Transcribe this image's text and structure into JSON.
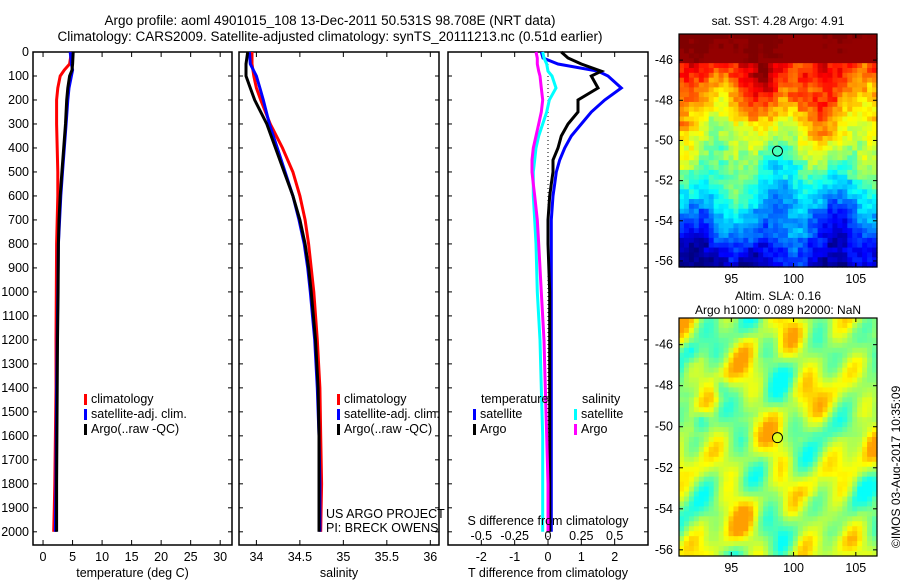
{
  "header": {
    "title_line1": "Argo profile: aoml 4901015_108 13-Dec-2011 50.531S 98.708E (NRT data)",
    "title_line2": "Climatology: CARS2009. Satellite-adjusted climatology: synTS_20111213.nc (0.51d earlier)"
  },
  "colors": {
    "climatology": "#ff0000",
    "satellite": "#0000ff",
    "argo": "#000000",
    "sal_satellite": "#00ffff",
    "sal_argo": "#ff00ff"
  },
  "chart_data": [
    {
      "type": "line",
      "name": "temperature-profile",
      "xlabel": "temperature (deg C)",
      "ylabel": "depth",
      "xlim": [
        -1.7,
        32
      ],
      "ylim": [
        2055,
        0
      ],
      "xticks": [
        "0",
        "5",
        "10",
        "15",
        "20",
        "25",
        "30"
      ],
      "yticks": [
        "0",
        "100",
        "200",
        "300",
        "400",
        "500",
        "600",
        "700",
        "800",
        "900",
        "1000",
        "1100",
        "1200",
        "1300",
        "1400",
        "1500",
        "1600",
        "1700",
        "1800",
        "1900",
        "2000"
      ],
      "legend": [
        "climatology",
        "satellite-adj. clim.",
        "Argo(..raw -QC)"
      ],
      "legend_position": "lower-middle",
      "depth": [
        0,
        50,
        75,
        100,
        150,
        200,
        300,
        400,
        500,
        600,
        700,
        800,
        1000,
        1200,
        1400,
        1600,
        1800,
        1900,
        2000
      ],
      "series": [
        {
          "name": "climatology",
          "color": "#ff0000",
          "values": [
            4.8,
            4.5,
            3.6,
            2.9,
            2.5,
            2.3,
            2.3,
            2.4,
            2.5,
            2.5,
            2.4,
            2.3,
            2.25,
            2.2,
            2.2,
            2.1,
            2.0,
            1.9,
            1.8
          ]
        },
        {
          "name": "satellite-adj. clim.",
          "color": "#0000ff",
          "values": [
            4.6,
            4.8,
            5.0,
            4.8,
            4.4,
            4.2,
            3.9,
            3.6,
            3.3,
            3.0,
            2.8,
            2.6,
            2.5,
            2.4,
            2.3,
            2.25,
            2.2,
            2.15,
            2.1
          ]
        },
        {
          "name": "Argo(..raw -QC)",
          "color": "#000000",
          "values": [
            5.1,
            5.0,
            4.9,
            4.5,
            4.2,
            4.0,
            3.8,
            3.5,
            3.2,
            2.9,
            2.7,
            2.6,
            2.55,
            2.45,
            2.4,
            2.35,
            2.3,
            2.3,
            2.3
          ]
        }
      ]
    },
    {
      "type": "line",
      "name": "salinity-profile",
      "xlabel": "salinity",
      "ylabel": "depth",
      "xlim": [
        33.8,
        36.1
      ],
      "ylim": [
        2055,
        0
      ],
      "xticks": [
        "34",
        "34.5",
        "35",
        "35.5",
        "36"
      ],
      "legend": [
        "climatology",
        "satellite-adj. clim.",
        "Argo(..raw -QC)"
      ],
      "legend_position": "lower-right",
      "annotation": [
        "US ARGO PROJECT",
        "PI: BRECK OWENS"
      ],
      "depth": [
        0,
        50,
        100,
        150,
        200,
        300,
        400,
        500,
        600,
        700,
        800,
        900,
        1000,
        1200,
        1400,
        1600,
        1800,
        2000
      ],
      "series": [
        {
          "name": "climatology",
          "color": "#ff0000",
          "values": [
            33.95,
            33.95,
            33.97,
            34.0,
            34.05,
            34.16,
            34.3,
            34.42,
            34.5,
            34.56,
            34.6,
            34.63,
            34.66,
            34.7,
            34.73,
            34.74,
            34.75,
            34.74
          ]
        },
        {
          "name": "satellite-adj. clim.",
          "color": "#0000ff",
          "values": [
            33.92,
            33.93,
            34.0,
            34.04,
            34.08,
            34.15,
            34.24,
            34.33,
            34.42,
            34.49,
            34.55,
            34.59,
            34.62,
            34.67,
            34.7,
            34.72,
            34.73,
            34.73
          ]
        },
        {
          "name": "Argo(..raw -QC)",
          "color": "#000000",
          "values": [
            33.9,
            33.88,
            33.88,
            33.93,
            33.98,
            34.12,
            34.22,
            34.32,
            34.42,
            34.5,
            34.56,
            34.6,
            34.63,
            34.68,
            34.71,
            34.72,
            34.72,
            34.72
          ]
        }
      ]
    },
    {
      "type": "line",
      "name": "difference-profile",
      "xlabel": "T difference from climatology",
      "x2label": "S difference from climatology",
      "xlim": [
        -3,
        3
      ],
      "x2lim": [
        -0.75,
        0.75
      ],
      "xticks": [
        "-2",
        "-1",
        "0",
        "1",
        "2"
      ],
      "x2ticks": [
        "-0.5",
        "-0.25",
        "0",
        "0.25",
        "0.5"
      ],
      "ylim": [
        2055,
        0
      ],
      "legend": {
        "temperature": [
          "satellite",
          "Argo"
        ],
        "salinity": [
          "satellite",
          "Argo"
        ]
      },
      "legend_position": "lower-middle",
      "depth": [
        0,
        25,
        50,
        80,
        100,
        150,
        200,
        250,
        300,
        350,
        400,
        450,
        500,
        550,
        600,
        700,
        800,
        1000,
        1200,
        1400,
        1600,
        1800,
        2000
      ],
      "series": [
        {
          "name": "temperature satellite",
          "axis": "T",
          "color": "#0000ff",
          "values": [
            -0.2,
            -0.15,
            0.3,
            1.5,
            1.8,
            2.2,
            1.7,
            1.3,
            1.0,
            0.7,
            0.5,
            0.35,
            0.25,
            0.2,
            0.15,
            0.1,
            0.1,
            0.1,
            0.1,
            0.1,
            0.1,
            0.1,
            0.1
          ]
        },
        {
          "name": "temperature Argo",
          "axis": "T",
          "color": "#000000",
          "values": [
            0.4,
            0.6,
            1.0,
            1.6,
            1.3,
            1.5,
            0.9,
            0.9,
            0.6,
            0.4,
            0.3,
            0.15,
            0.15,
            0.1,
            0.05,
            0.0,
            0.0,
            0.05,
            0.05,
            0.05,
            0.05,
            0.05,
            0.05
          ]
        },
        {
          "name": "salinity satellite",
          "axis": "S",
          "color": "#00ffff",
          "values": [
            -0.04,
            -0.03,
            -0.01,
            0.0,
            0.03,
            0.06,
            0.01,
            -0.01,
            -0.04,
            -0.07,
            -0.09,
            -0.1,
            -0.11,
            -0.11,
            -0.11,
            -0.1,
            -0.09,
            -0.08,
            -0.06,
            -0.05,
            -0.04,
            -0.04,
            -0.04
          ]
        },
        {
          "name": "salinity Argo",
          "axis": "S",
          "color": "#ff00ff",
          "values": [
            -0.09,
            -0.08,
            -0.08,
            -0.07,
            -0.06,
            -0.05,
            -0.04,
            -0.05,
            -0.07,
            -0.09,
            -0.11,
            -0.12,
            -0.12,
            -0.11,
            -0.1,
            -0.08,
            -0.07,
            -0.05,
            -0.03,
            -0.02,
            -0.01,
            0.0,
            0.0
          ]
        }
      ]
    },
    {
      "type": "heatmap",
      "name": "sst-map",
      "title": "sat. SST: 4.28 Argo: 4.91",
      "xlim": [
        90.8,
        106.7
      ],
      "ylim": [
        -56.3,
        -44.7
      ],
      "xticks": [
        "95",
        "100",
        "105"
      ],
      "yticks": [
        "-46",
        "-48",
        "-50",
        "-52",
        "-54",
        "-56"
      ],
      "marker": {
        "lon": 98.708,
        "lat": -50.531
      },
      "colormap": "jet"
    },
    {
      "type": "heatmap",
      "name": "sla-map",
      "title": [
        "Altim. SLA: 0.16",
        "Argo h1000: 0.089 h2000: NaN"
      ],
      "xlim": [
        90.8,
        106.7
      ],
      "ylim": [
        -56.3,
        -44.7
      ],
      "xticks": [
        "95",
        "100",
        "105"
      ],
      "yticks": [
        "-46",
        "-48",
        "-50",
        "-52",
        "-54",
        "-56"
      ],
      "marker": {
        "lon": 98.708,
        "lat": -50.531
      },
      "colormap": "jet"
    }
  ],
  "footer": {
    "stamp": "©IMOS 03-Aug-2017 10:35:09"
  }
}
